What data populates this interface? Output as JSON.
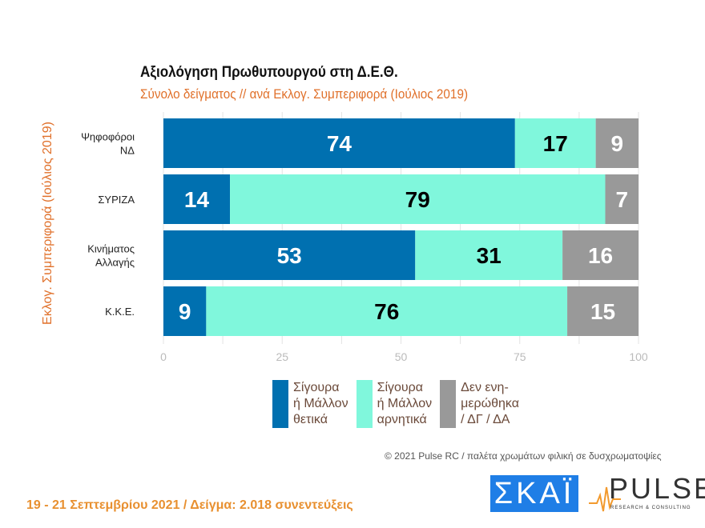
{
  "chart_data": {
    "type": "bar",
    "orientation": "horizontal-stacked",
    "title": "Αξιολόγηση Πρωθυπουργού στη Δ.Ε.Θ.",
    "subtitle": "Σύνολο δείγματος // ανά Εκλογ. Συμπεριφορά (Ιούλιος 2019)",
    "ylabel": "Εκλογ. Συμπεριφορά (Ιούλιος 2019)",
    "categories": [
      "Ψηφοφόροι\nΝΔ",
      "ΣΥΡΙΖΑ",
      "Κινήματος\nΑλλαγής",
      "Κ.Κ.Ε."
    ],
    "series": [
      {
        "name": "Σίγουρα\nή Μάλλον\nθετικά",
        "color": "#0070b0",
        "label_color": "#ffffff",
        "values": [
          74,
          14,
          53,
          9
        ]
      },
      {
        "name": "Σίγουρα\nή Μάλλον\nαρνητικά",
        "color": "#80f7dc",
        "label_color": "#000000",
        "values": [
          17,
          79,
          31,
          76
        ]
      },
      {
        "name": "Δεν ενη-\nμερώθηκα\n/ ΔΓ / ΔΑ",
        "color": "#999999",
        "label_color": "#ffffff",
        "values": [
          9,
          7,
          16,
          15
        ]
      }
    ],
    "xlim": [
      0,
      100
    ],
    "xticks": [
      0,
      25,
      50,
      75,
      100
    ],
    "grid": true,
    "legend": "bottom"
  },
  "credits": "© 2021 Pulse RC  /  παλέτα χρωμάτων φιλική σε δυσχρωματοψίες",
  "footer": "19 - 21 Σεπτεμβρίου 2021  /  Δείγμα:  2.018 συνεντεύξεις",
  "logos": {
    "skai": "ΣΚΑΪ",
    "pulse": "PULSE",
    "pulse_sub": "RESEARCH & CONSULTING"
  }
}
